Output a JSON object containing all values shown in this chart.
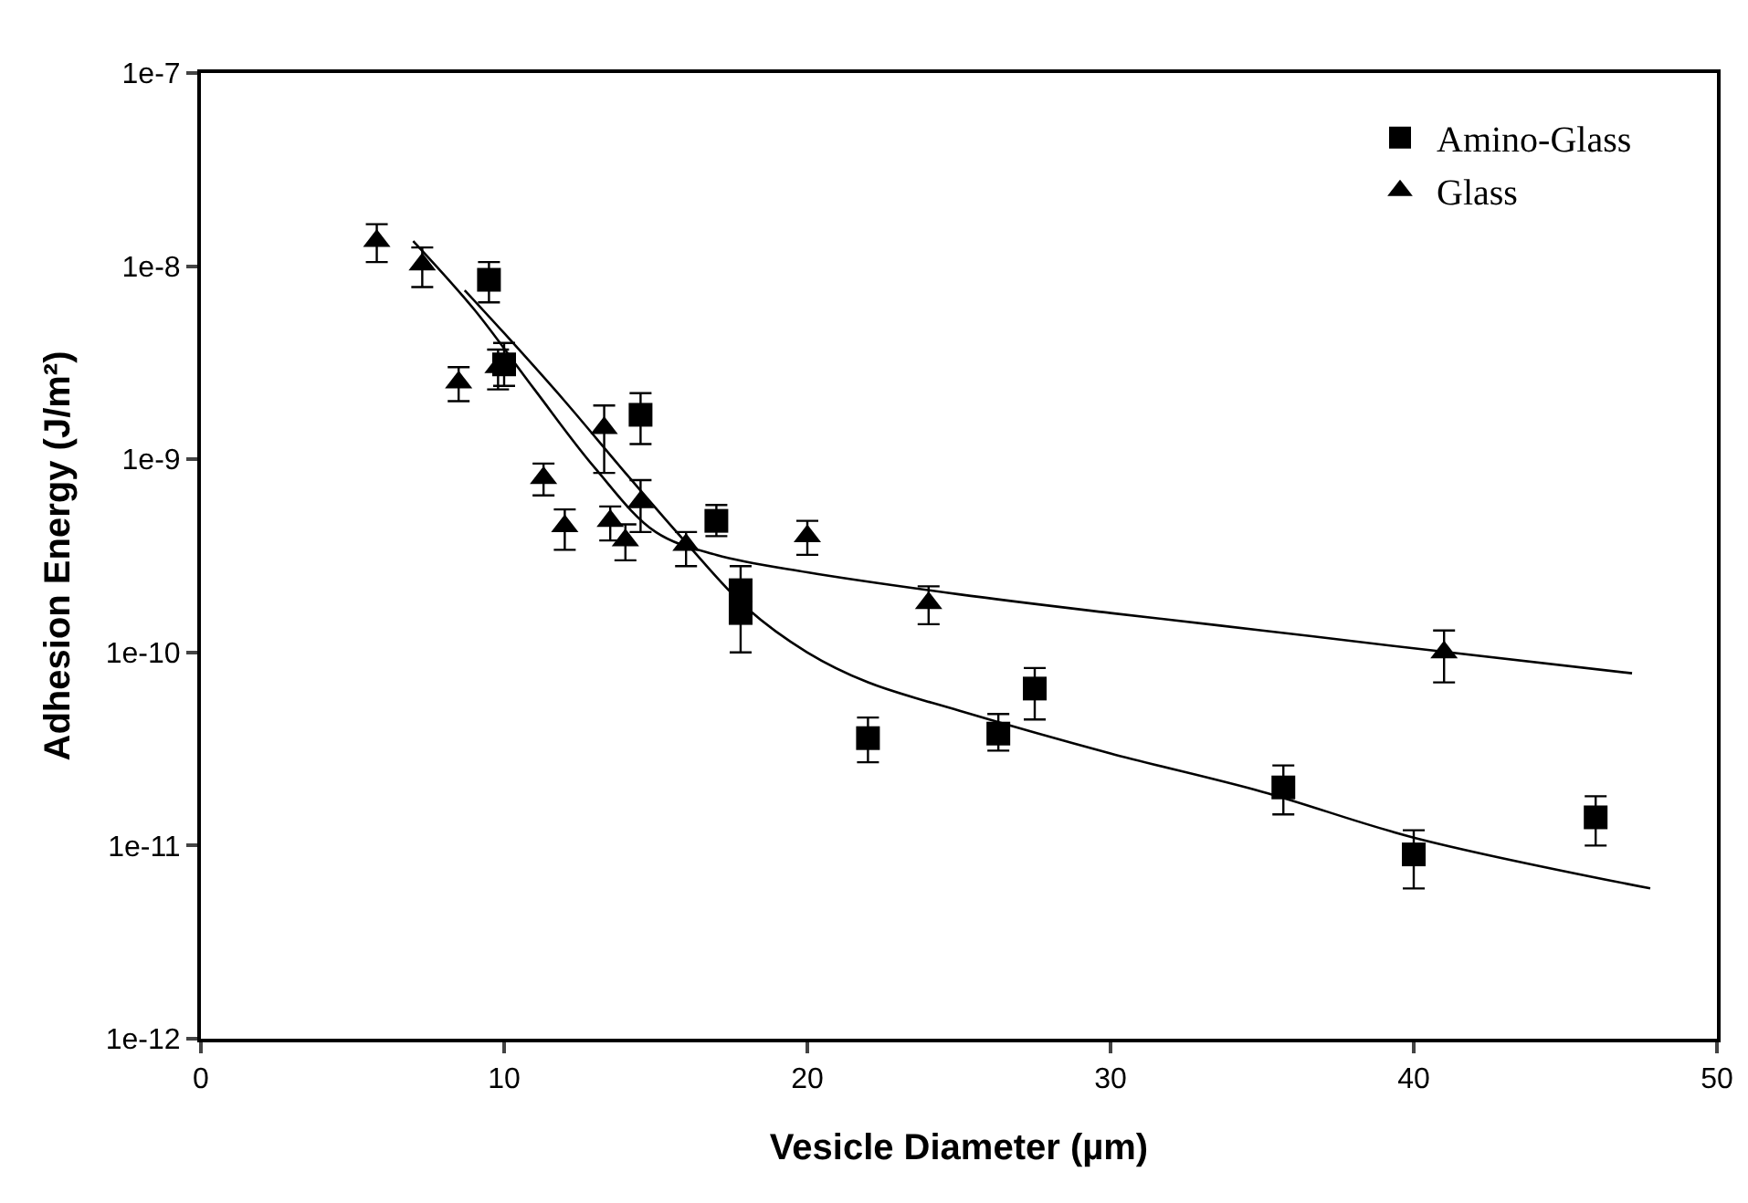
{
  "chart_data": {
    "type": "scatter",
    "xlabel": "Vesicle Diameter (µm)",
    "ylabel": "Adhesion Energy (J/m²)",
    "log": "y",
    "legend": "top right",
    "xlim": [
      0,
      50
    ],
    "xticks": [
      0,
      10,
      20,
      30,
      40,
      50
    ],
    "ylim": [
      1e-12,
      1e-07
    ],
    "yticks": [
      {
        "value": 1e-12,
        "label": "1e-12"
      },
      {
        "value": 1e-11,
        "label": "1e-11"
      },
      {
        "value": 1e-10,
        "label": "1e-10"
      },
      {
        "value": 1e-09,
        "label": "1e-9"
      },
      {
        "value": 1e-08,
        "label": "1e-8"
      },
      {
        "value": 1e-07,
        "label": "1e-7"
      }
    ],
    "series": [
      {
        "name": "Amino-Glass",
        "color": "#000000",
        "marker": "square",
        "x": [
          9.5,
          10,
          14.5,
          17,
          17.8,
          17.8,
          22,
          26.3,
          27.5,
          35.7,
          40,
          46
        ],
        "values": [
          8.5e-09,
          3.1e-09,
          1.7e-09,
          4.8e-10,
          2.1e-10,
          1.6e-10,
          3.6e-11,
          3.8e-11,
          6.5e-11,
          2e-11,
          9e-12,
          1.4e-11
        ],
        "errors": [
          [
            6.5e-09,
            1.05e-08
          ],
          [
            2.4e-09,
            4e-09
          ],
          [
            1.2e-09,
            2.2e-09
          ],
          [
            4e-10,
            5.8e-10
          ],
          [
            2.1e-10,
            2.8e-10
          ],
          [
            1e-10,
            1.6e-10
          ],
          [
            2.7e-11,
            4.6e-11
          ],
          [
            3.1e-11,
            4.8e-11
          ],
          [
            4.5e-11,
            8.3e-11
          ],
          [
            1.45e-11,
            2.6e-11
          ],
          [
            6e-12,
            1.2e-11
          ],
          [
            1e-11,
            1.8e-11
          ]
        ]
      },
      {
        "name": "Glass",
        "color": "#000000",
        "marker": "triangle",
        "x": [
          5.8,
          7.3,
          8.5,
          9.8,
          11.3,
          12,
          13.3,
          13.5,
          14,
          14.5,
          16,
          20,
          24,
          41
        ],
        "values": [
          1.35e-08,
          1.02e-08,
          2.5e-09,
          3e-09,
          8e-10,
          4.5e-10,
          1.45e-09,
          4.8e-10,
          3.8e-10,
          6e-10,
          3.6e-10,
          4e-10,
          1.8e-10,
          1e-10
        ],
        "errors": [
          [
            1.05e-08,
            1.65e-08
          ],
          [
            7.8e-09,
            1.25e-08
          ],
          [
            2e-09,
            3e-09
          ],
          [
            2.3e-09,
            3.7e-09
          ],
          [
            6.5e-10,
            9.5e-10
          ],
          [
            3.4e-10,
            5.5e-10
          ],
          [
            8.5e-10,
            1.9e-09
          ],
          [
            3.8e-10,
            5.7e-10
          ],
          [
            3e-10,
            4.6e-10
          ],
          [
            4.2e-10,
            7.8e-10
          ],
          [
            2.8e-10,
            4.2e-10
          ],
          [
            3.2e-10,
            4.8e-10
          ],
          [
            1.4e-10,
            2.2e-10
          ],
          [
            7e-11,
            1.3e-10
          ]
        ]
      },
      {
        "type": "line",
        "color": "#000000",
        "line_style": "solid",
        "x": [
          8.7,
          10,
          12,
          14,
          16,
          18,
          20,
          22,
          25,
          30,
          35,
          40,
          47.8
        ],
        "values": [
          7.5e-09,
          4.5e-09,
          2e-09,
          8.5e-10,
          3.7e-10,
          1.7e-10,
          1e-10,
          7e-11,
          5e-11,
          3e-11,
          1.9e-11,
          1.1e-11,
          6e-12
        ]
      },
      {
        "type": "line",
        "color": "#000000",
        "line_style": "solid",
        "x": [
          7,
          9,
          11,
          13,
          15,
          17,
          20,
          25,
          30,
          35,
          40,
          47.2
        ],
        "values": [
          1.35e-08,
          6e-09,
          2.3e-09,
          9e-10,
          4.2e-10,
          3.2e-10,
          2.6e-10,
          2e-10,
          1.6e-10,
          1.3e-10,
          1.05e-10,
          7.8e-11
        ]
      }
    ]
  }
}
